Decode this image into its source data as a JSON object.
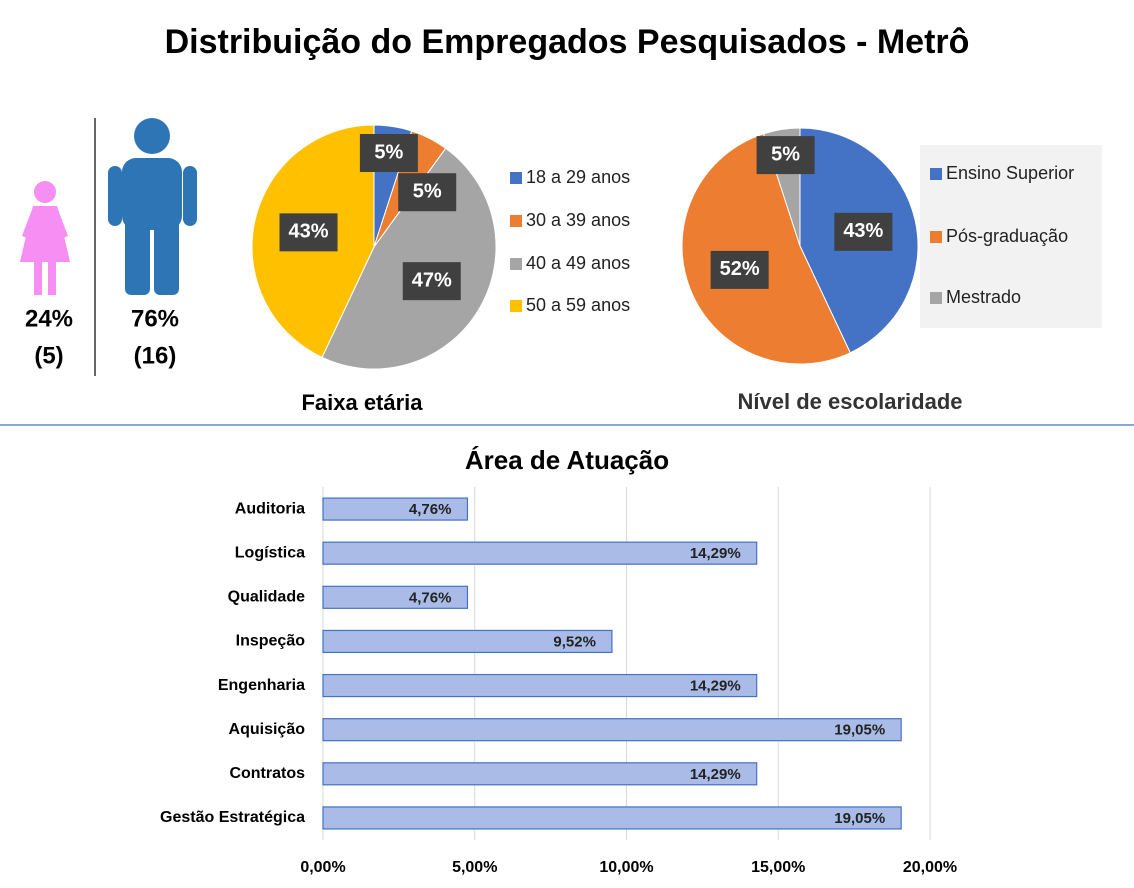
{
  "title": "Distribuição do Empregados Pesquisados - Metrô",
  "chart_data": [
    {
      "type": "icon",
      "values": [
        24,
        76
      ],
      "value_labels": [
        "24%",
        "76%"
      ],
      "counts": [
        5,
        16
      ],
      "count_labels": [
        "(5)",
        "(16)"
      ],
      "colors": [
        "#f78ef4",
        "#2e75b6"
      ]
    },
    {
      "type": "pie",
      "title": "Faixa etária",
      "categories": [
        "18 a 29 anos",
        "30 a 39 anos",
        "40 a 49 anos",
        "50 a 59 anos"
      ],
      "values": [
        5,
        5,
        47,
        43
      ],
      "value_labels": [
        "5%",
        "5%",
        "47%",
        "43%"
      ],
      "colors": [
        "#4472c4",
        "#ed7d31",
        "#a5a5a5",
        "#ffc000"
      ],
      "legend": "right"
    },
    {
      "type": "pie",
      "title": "Nível de escolaridade",
      "categories": [
        "Ensino Superior",
        "Pós-graduação",
        "Mestrado"
      ],
      "values": [
        43,
        52,
        5
      ],
      "value_labels": [
        "43%",
        "52%",
        "5%"
      ],
      "colors": [
        "#4472c4",
        "#ed7d31",
        "#a5a5a5"
      ],
      "legend": "right"
    },
    {
      "type": "hbar",
      "title": "Área de Atuação",
      "categories": [
        "Auditoria",
        "Logística",
        "Qualidade",
        "Inspeção",
        "Engenharia",
        "Aquisição",
        "Contratos",
        "Gestão Estratégica"
      ],
      "values": [
        4.76,
        14.29,
        4.76,
        9.52,
        14.29,
        19.05,
        14.29,
        19.05
      ],
      "value_labels": [
        "4,76%",
        "14,29%",
        "4,76%",
        "9,52%",
        "14,29%",
        "19,05%",
        "14,29%",
        "19,05%"
      ],
      "color": "#a9bbe6",
      "xlim": [
        0,
        20
      ],
      "xticks": [
        {
          "value": 0,
          "label": "0,00%"
        },
        {
          "value": 5,
          "label": "5,00%"
        },
        {
          "value": 10,
          "label": "10,00%"
        },
        {
          "value": 15,
          "label": "15,00%"
        },
        {
          "value": 20,
          "label": "20,00%"
        }
      ],
      "grid": true
    }
  ]
}
